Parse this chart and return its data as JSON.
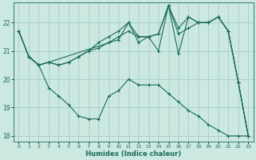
{
  "xlabel": "Humidex (Indice chaleur)",
  "background_color": "#cce9e1",
  "grid_color": "#aad0c8",
  "line_color": "#1a6b5a",
  "xlim": [
    -0.5,
    23.5
  ],
  "ylim": [
    17.8,
    22.7
  ],
  "yticks": [
    18,
    19,
    20,
    21,
    22
  ],
  "xticks": [
    0,
    1,
    2,
    3,
    4,
    5,
    6,
    7,
    8,
    9,
    10,
    11,
    12,
    13,
    14,
    15,
    16,
    17,
    18,
    19,
    20,
    21,
    22,
    23
  ],
  "lines": [
    {
      "x": [
        0,
        1,
        2,
        3,
        4,
        5,
        6,
        7,
        8,
        9,
        10,
        11,
        12,
        13,
        14,
        15,
        16,
        17,
        18,
        19,
        20,
        21,
        22,
        23
      ],
      "y": [
        21.7,
        20.8,
        20.5,
        20.6,
        20.5,
        20.6,
        20.8,
        21.0,
        21.1,
        21.3,
        21.5,
        21.7,
        21.5,
        21.5,
        21.6,
        22.6,
        21.6,
        21.8,
        22.0,
        22.0,
        22.2,
        21.7,
        19.9,
        18.0
      ]
    },
    {
      "x": [
        0,
        1,
        2,
        3,
        4,
        5,
        6,
        7,
        8,
        9,
        10,
        11,
        12,
        13,
        14,
        15,
        16,
        17,
        18,
        19,
        20,
        21,
        22,
        23
      ],
      "y": [
        21.7,
        20.8,
        20.5,
        20.6,
        20.5,
        20.6,
        20.8,
        21.0,
        21.3,
        21.5,
        21.7,
        22.0,
        21.5,
        21.5,
        21.6,
        22.6,
        21.8,
        22.2,
        22.0,
        22.0,
        22.2,
        21.7,
        19.9,
        18.0
      ]
    },
    {
      "x": [
        0,
        1,
        2,
        3,
        10,
        11,
        12,
        13,
        14,
        15,
        16,
        17,
        18,
        19,
        20,
        21,
        22,
        23
      ],
      "y": [
        21.7,
        20.8,
        20.5,
        20.6,
        21.4,
        22.0,
        21.3,
        21.5,
        21.0,
        22.6,
        20.9,
        22.2,
        22.0,
        22.0,
        22.2,
        21.7,
        19.9,
        18.0
      ]
    },
    {
      "x": [
        1,
        2,
        3,
        4,
        5,
        6,
        7,
        8,
        9,
        10,
        11,
        12,
        13,
        14,
        15,
        16,
        17,
        18,
        19,
        20,
        21,
        22,
        23
      ],
      "y": [
        20.8,
        20.5,
        19.7,
        19.4,
        19.1,
        18.7,
        18.6,
        18.6,
        19.4,
        19.6,
        20.0,
        19.8,
        19.8,
        19.8,
        19.5,
        19.2,
        18.9,
        18.7,
        18.4,
        18.2,
        18.0,
        18.0,
        18.0
      ]
    }
  ]
}
